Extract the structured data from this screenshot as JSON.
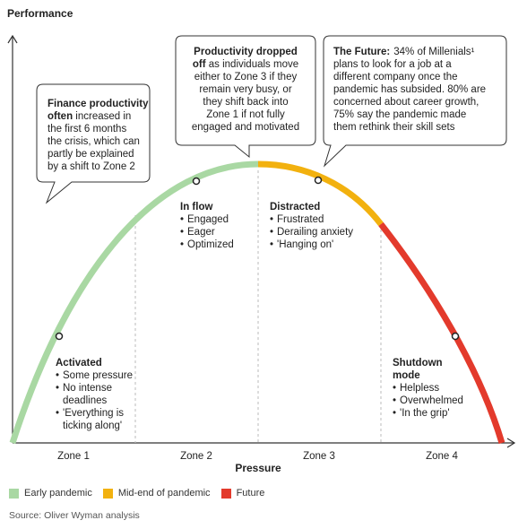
{
  "y_axis_label": "Performance",
  "x_axis_label": "Pressure",
  "zones": [
    "Zone 1",
    "Zone 2",
    "Zone 3",
    "Zone 4"
  ],
  "phases": [
    {
      "title": "Activated",
      "items": [
        "Some pressure",
        "No intense",
        "deadlines",
        "'Everything is",
        "ticking along'"
      ]
    },
    {
      "title": "In flow",
      "items": [
        "Engaged",
        "Eager",
        "Optimized"
      ]
    },
    {
      "title": "Distracted",
      "items": [
        "Frustrated",
        "Derailing anxiety",
        "'Hanging on'"
      ]
    },
    {
      "title": "Shutdown",
      "title2": "mode",
      "items": [
        "Helpless",
        "Overwhelmed",
        "'In the grip'"
      ]
    }
  ],
  "callouts": {
    "finance": {
      "lines": [
        "Finance productivity",
        "often increased in",
        "the first 6 months",
        "the crisis, which can",
        "partly be explained",
        "by a shift to Zone 2"
      ],
      "bold_lines": 2
    },
    "productivity": {
      "lines": [
        "Productivity dropped",
        "off as individuals move",
        "either to Zone 3 if they",
        "remain very busy, or",
        "they shift back into",
        "Zone 1 if not fully",
        "engaged and motivated"
      ],
      "bold_lines": 1,
      "bold_prefix_line2": "off"
    },
    "future": {
      "lead": "The Future:",
      "lines": [
        "34% of Millenials¹",
        "plans to look for a job at a",
        "different company once the",
        "pandemic has subsided. 80% are",
        "concerned about career growth,",
        "75% say the pandemic made",
        "them rethink their skill sets"
      ]
    }
  },
  "legend": [
    {
      "label": "Early pandemic",
      "color": "#a9d8a3"
    },
    {
      "label": "Mid-end of pandemic",
      "color": "#f2b10f"
    },
    {
      "label": "Future",
      "color": "#e33a2c"
    }
  ],
  "source": "Source: Oliver Wyman analysis"
}
